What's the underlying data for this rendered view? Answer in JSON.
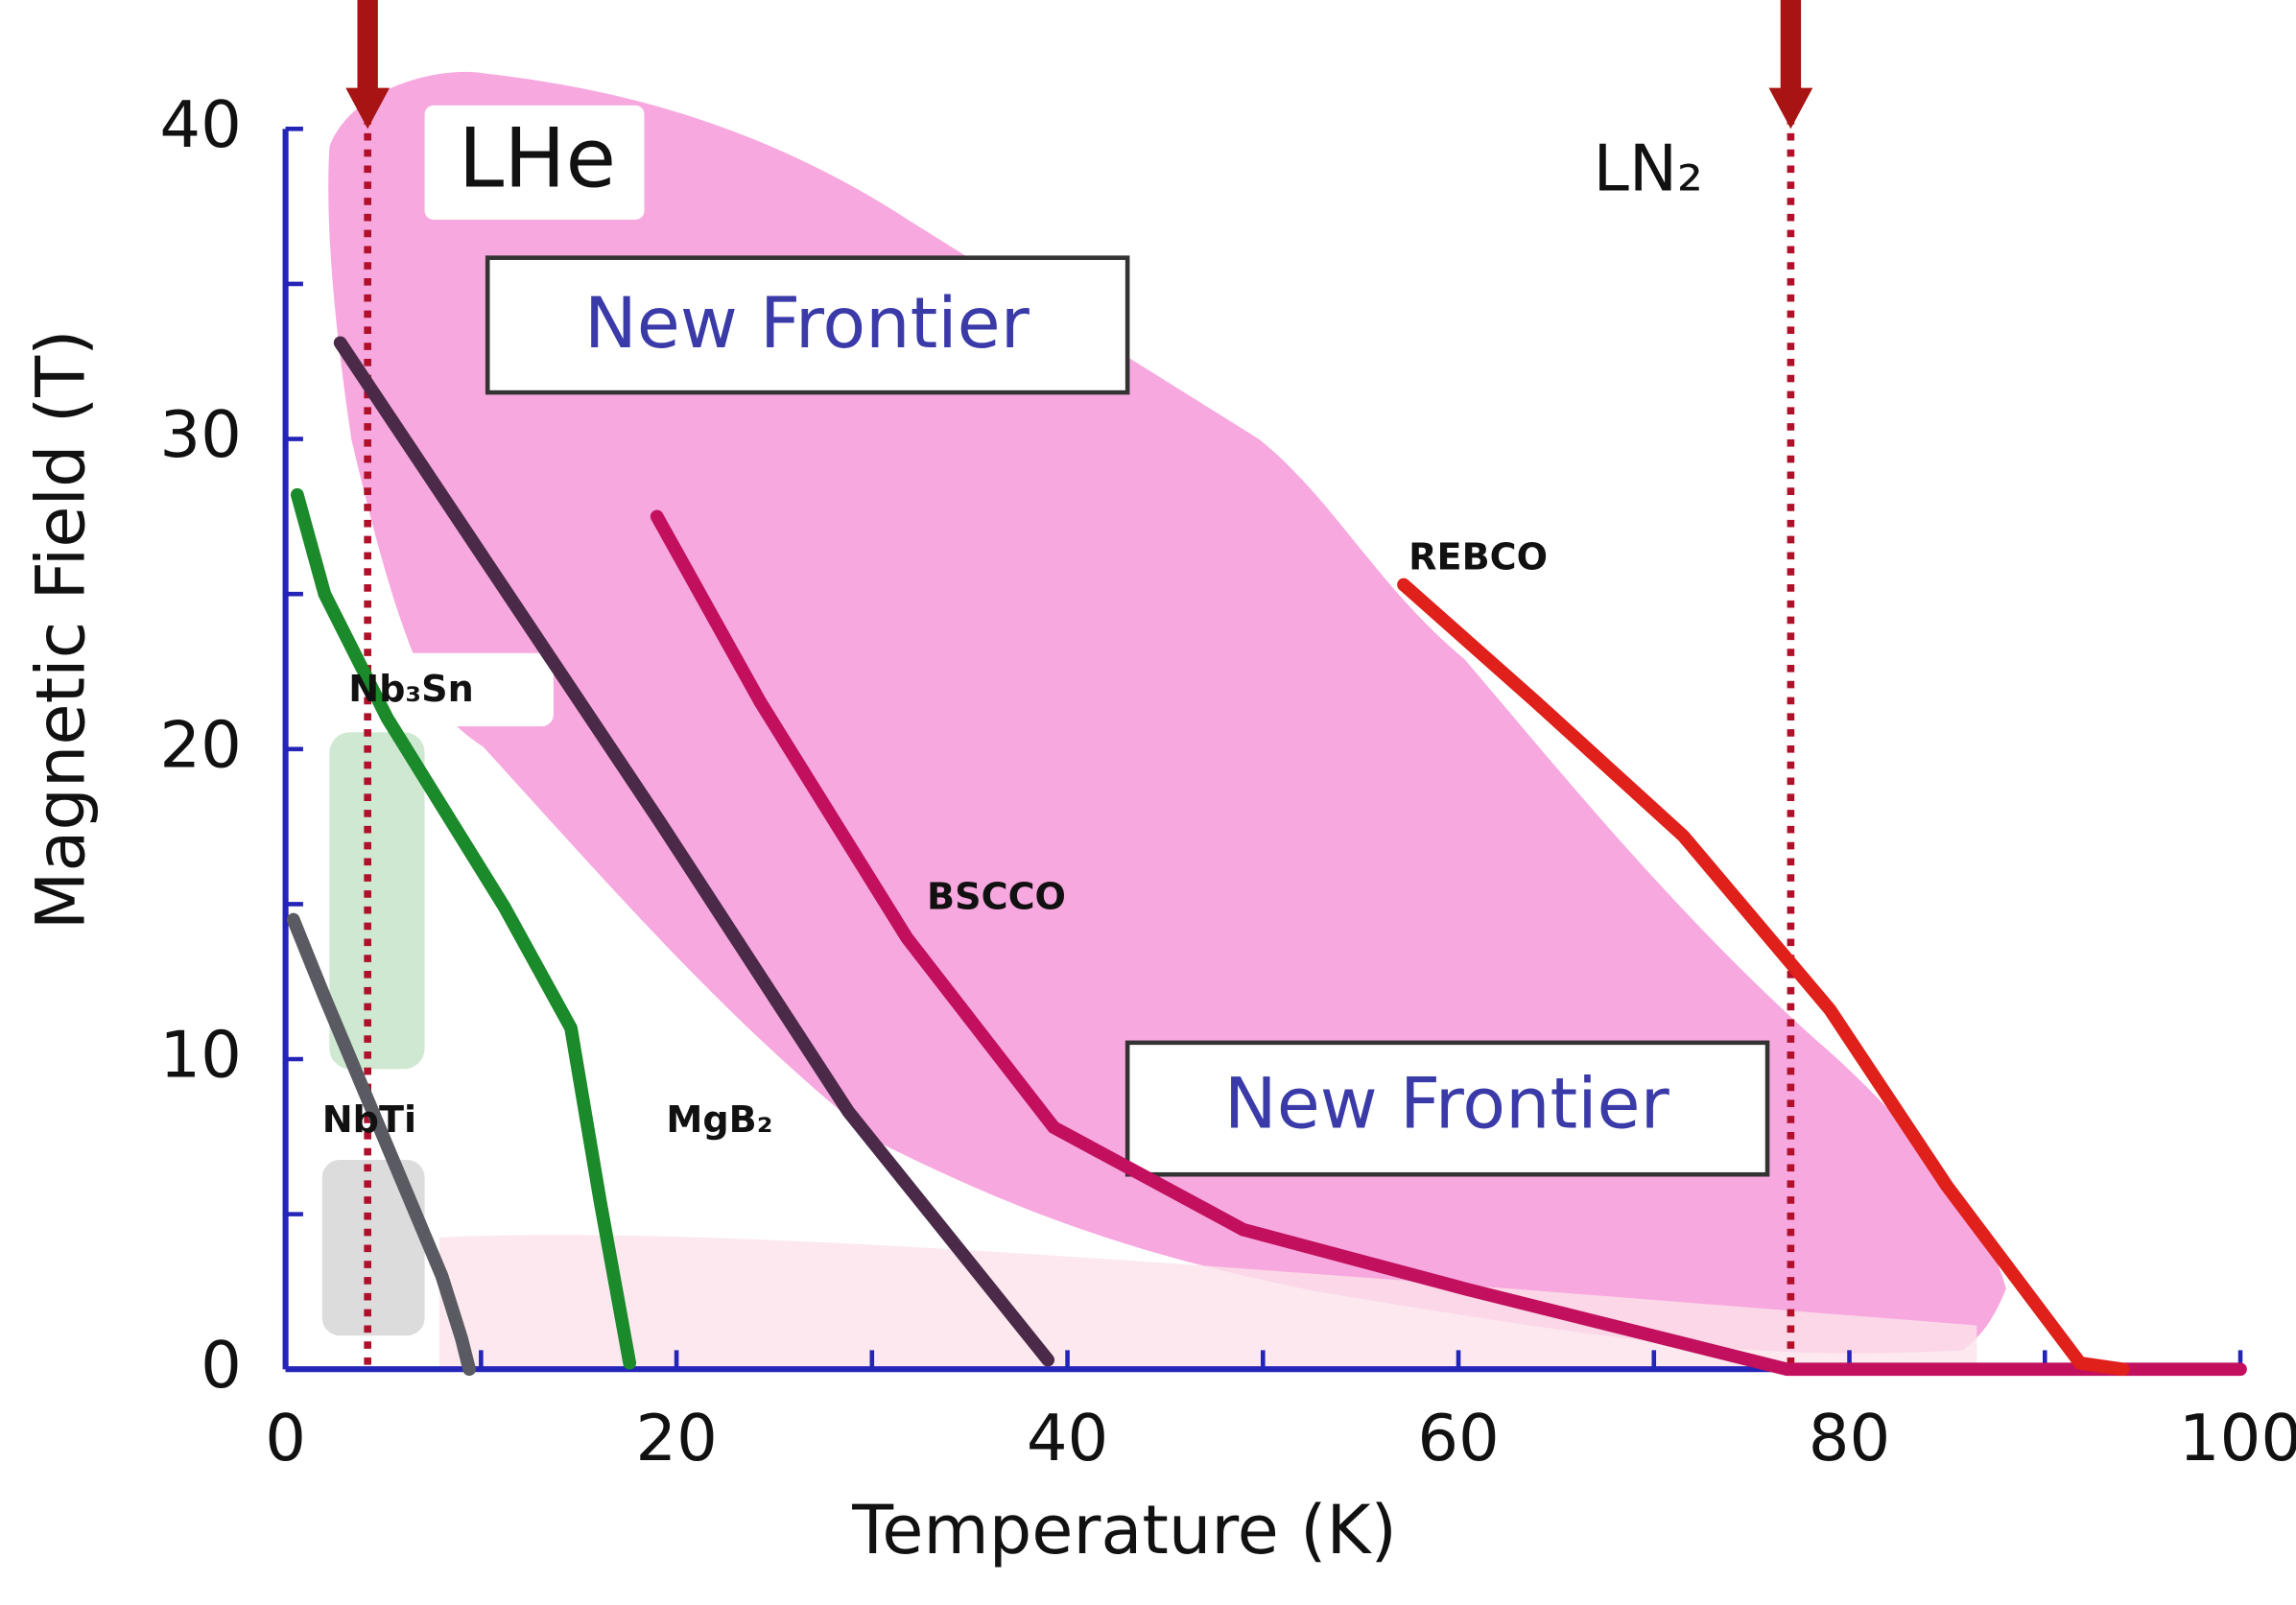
{
  "chart_data": {
    "type": "line",
    "x_label": "Temperature (K)",
    "y_label": "Magnetic Field (T)",
    "xlim": [
      0,
      100
    ],
    "ylim": [
      0,
      40
    ],
    "xticks": [
      0,
      20,
      40,
      60,
      80,
      100
    ],
    "xticks_minor": [
      10,
      30,
      50,
      70,
      90
    ],
    "yticks": [
      0,
      10,
      20,
      30,
      40
    ],
    "yticks_minor": [
      5,
      15,
      25,
      35
    ],
    "axis_color": "#2424b8",
    "series": [
      {
        "name": "NbTi",
        "color": "#5a5a62",
        "x": [
          0.4,
          2,
          4,
          6,
          8,
          9,
          9.4
        ],
        "values": [
          14.5,
          12,
          9,
          6,
          3,
          1,
          0
        ]
      },
      {
        "name": "Nb₃Sn",
        "color": "#1a8a2a",
        "x": [
          0.6,
          2,
          5.2,
          11.2,
          14.6,
          16.1,
          17.6
        ],
        "values": [
          28.2,
          25,
          21,
          14.9,
          11,
          5.4,
          0.2
        ]
      },
      {
        "name": "MgB₂",
        "color": "#4a2a48",
        "x": [
          2.8,
          10.1,
          19.1,
          28.8,
          39
        ],
        "values": [
          33.1,
          26.2,
          17.7,
          8.3,
          0.3
        ]
      },
      {
        "name": "BSCCO",
        "color": "#c2105e",
        "x": [
          19,
          24.3,
          31.8,
          39.3,
          49,
          60.3,
          76.8,
          100
        ],
        "values": [
          27.5,
          21.5,
          13.9,
          7.8,
          4.5,
          2.6,
          0,
          0
        ]
      },
      {
        "name": "REBCO",
        "color": "#e0201a",
        "x": [
          57.2,
          64,
          71.5,
          79,
          85,
          91.8,
          94
        ],
        "values": [
          25.3,
          21.5,
          17.2,
          11.6,
          5.9,
          0.2,
          0
        ]
      }
    ],
    "reference_lines": [
      {
        "text": "LHe",
        "x": 4.2,
        "color": "#b0102a"
      },
      {
        "text": "LN₂",
        "x": 77,
        "color": "#b0102a"
      }
    ],
    "region_labels": [
      "New Frontier",
      "New Frontier"
    ]
  }
}
